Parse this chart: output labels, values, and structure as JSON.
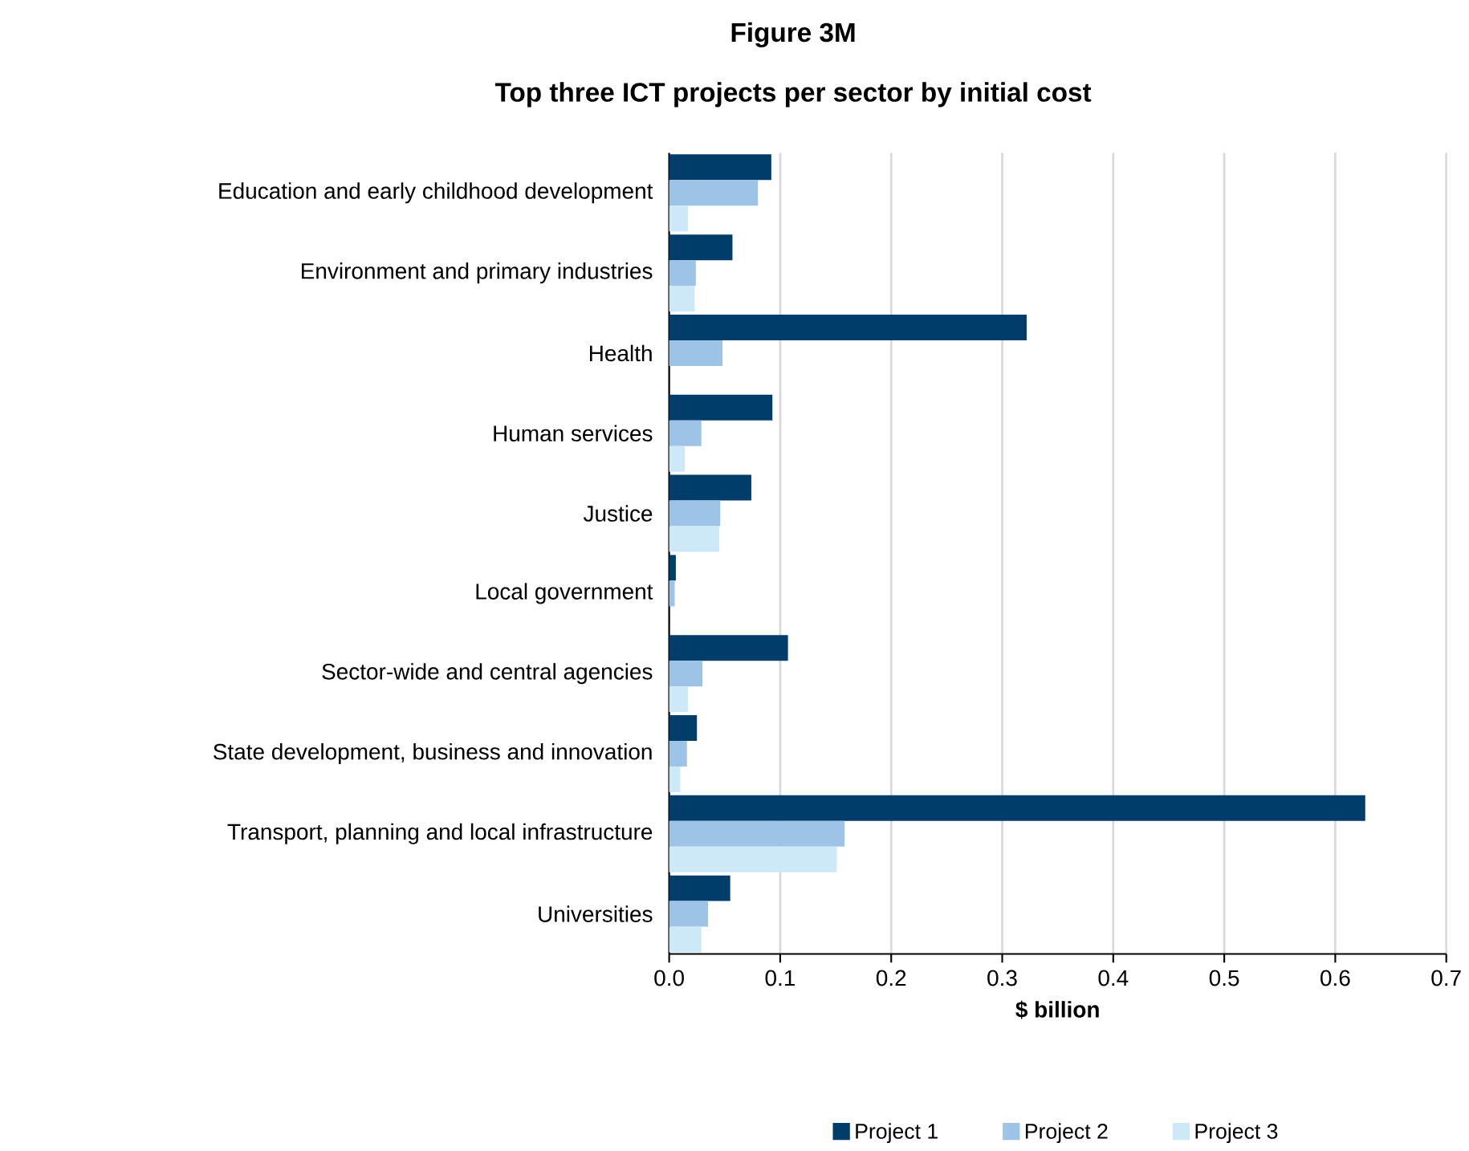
{
  "chart_data": {
    "type": "bar",
    "orientation": "horizontal",
    "title": "Figure 3M",
    "subtitle": "Top three ICT projects per sector by initial cost",
    "xlabel": "$ billion",
    "categories": [
      "Education and early childhood development",
      "Environment and primary industries",
      "Health",
      "Human services",
      "Justice",
      "Local government",
      "Sector-wide and central agencies",
      "State development, business and innovation",
      "Transport, planning and local infrastructure",
      "Universities"
    ],
    "series": [
      {
        "name": "Project 1",
        "color": "#003d6b",
        "values": [
          0.092,
          0.057,
          0.322,
          0.093,
          0.074,
          0.006,
          0.107,
          0.025,
          0.627,
          0.055
        ]
      },
      {
        "name": "Project 2",
        "color": "#9dc3e6",
        "values": [
          0.08,
          0.024,
          0.048,
          0.029,
          0.046,
          0.005,
          0.03,
          0.016,
          0.158,
          0.035
        ]
      },
      {
        "name": "Project 3",
        "color": "#cde9f8",
        "values": [
          0.017,
          0.023,
          null,
          0.014,
          0.045,
          null,
          0.017,
          0.01,
          0.151,
          0.029
        ]
      }
    ],
    "xlim": [
      0,
      0.7
    ],
    "xticks": [
      {
        "value": 0,
        "label": "0.0"
      },
      0.1,
      0.2,
      0.3,
      0.4,
      0.5,
      0.6,
      0.7
    ],
    "grid": "x",
    "legend": "bottom"
  }
}
